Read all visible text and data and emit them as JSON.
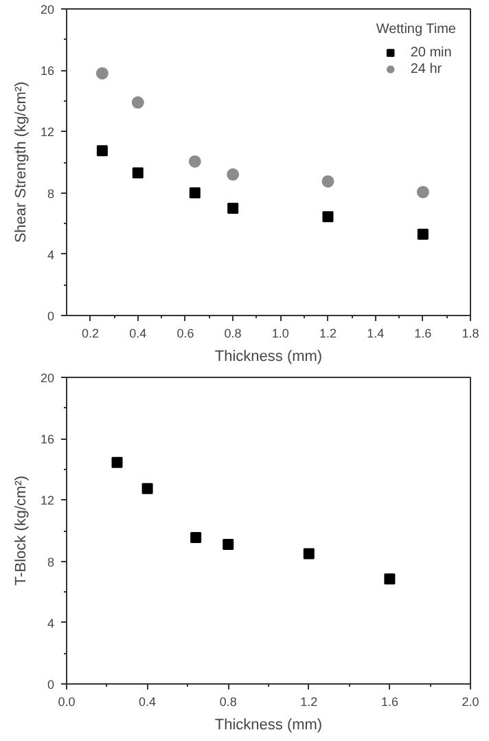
{
  "chart_data": [
    {
      "type": "scatter",
      "xlabel": "Thickness (mm)",
      "ylabel": "Shear Strength (kg/cm²)",
      "legend_title": "Wetting Time",
      "legend": "top right",
      "grid": false,
      "x": [
        0.25,
        0.4,
        0.64,
        0.8,
        1.2,
        1.6
      ],
      "series": [
        {
          "name": "20 min",
          "color": "#000000",
          "marker": "square",
          "values": [
            10.75,
            9.3,
            8.0,
            7.0,
            6.45,
            5.3
          ]
        },
        {
          "name": "24 hr",
          "color": "#8c8c8c",
          "marker": "circle",
          "values": [
            15.8,
            13.9,
            10.05,
            9.2,
            8.75,
            8.05
          ]
        }
      ],
      "xlim": [
        0.1,
        1.8
      ],
      "ylim": [
        0,
        20
      ],
      "xticks": [
        {
          "value": 0.2,
          "label": "0.2"
        },
        {
          "value": 0.4,
          "label": "0.4"
        },
        {
          "value": 0.6,
          "label": "0.6"
        },
        {
          "value": 0.8,
          "label": "0.8"
        },
        {
          "value": 1.0,
          "label": "1.0"
        },
        {
          "value": 1.2,
          "label": "1.2"
        },
        {
          "value": 1.4,
          "label": "1.4"
        },
        {
          "value": 1.6,
          "label": "1.6"
        },
        {
          "value": 1.8,
          "label": "1.8"
        }
      ],
      "yticks": [
        0,
        4,
        8,
        12,
        16,
        20
      ]
    },
    {
      "type": "scatter",
      "xlabel": "Thickness (mm)",
      "ylabel": "T-Block (kg/cm²)",
      "grid": false,
      "legend": false,
      "marker": "square",
      "x": [
        0.25,
        0.4,
        0.64,
        0.8,
        1.2,
        1.6
      ],
      "series": [
        {
          "color": "#000000",
          "values": [
            14.45,
            12.75,
            9.55,
            9.1,
            8.5,
            6.85
          ]
        }
      ],
      "xlim": [
        0,
        2.0
      ],
      "ylim": [
        0,
        20
      ],
      "xticks": [
        {
          "value": 0,
          "label": "0.0"
        },
        {
          "value": 0.4,
          "label": "0.4"
        },
        {
          "value": 0.8,
          "label": "0.8"
        },
        {
          "value": 1.2,
          "label": "1.2"
        },
        {
          "value": 1.6,
          "label": "1.6"
        },
        {
          "value": 2.0,
          "label": "2.0"
        }
      ],
      "yticks": [
        0,
        4,
        8,
        12,
        16,
        20
      ]
    }
  ]
}
